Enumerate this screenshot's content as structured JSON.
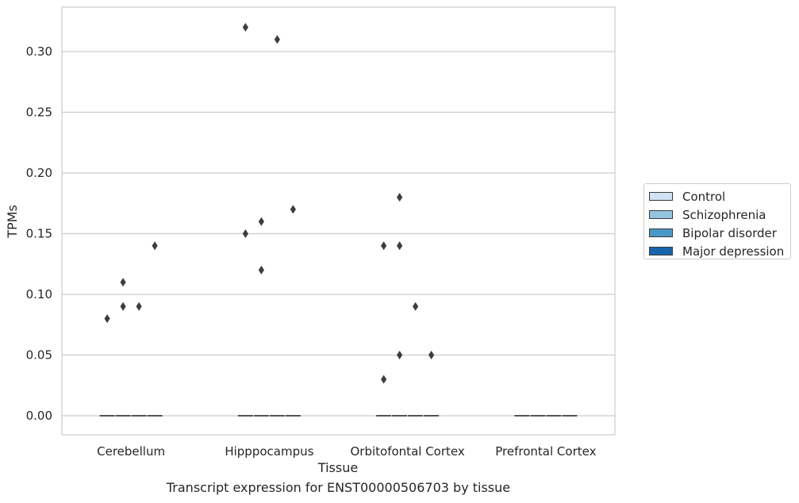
{
  "chart_data": {
    "type": "box",
    "xlabel": "Tissue",
    "ylabel": "TPMs",
    "categories": [
      "Cerebellum",
      "Hipppocampus",
      "Orbitofontal Cortex",
      "Prefrontal Cortex"
    ],
    "yticks": [
      "0.00",
      "0.05",
      "0.10",
      "0.15",
      "0.20",
      "0.25",
      "0.30"
    ],
    "ylim": [
      -0.016,
      0.337
    ],
    "grid": true,
    "legend_position": "right",
    "series": [
      {
        "name": "Control",
        "color": "#d0e1f2",
        "medians": [
          0,
          0,
          0,
          0
        ],
        "outliers": [
          [
            0.08
          ],
          [
            0.15,
            0.32
          ],
          [
            0.03,
            0.14
          ],
          []
        ]
      },
      {
        "name": "Schizophrenia",
        "color": "#94c4df",
        "medians": [
          0,
          0,
          0,
          0
        ],
        "outliers": [
          [
            0.09,
            0.11
          ],
          [
            0.12,
            0.16
          ],
          [
            0.05,
            0.14,
            0.18
          ],
          []
        ]
      },
      {
        "name": "Bipolar disorder",
        "color": "#4a98c9",
        "medians": [
          0,
          0,
          0,
          0
        ],
        "outliers": [
          [
            0.09
          ],
          [
            0.31
          ],
          [
            0.09
          ],
          []
        ]
      },
      {
        "name": "Major depression",
        "color": "#1764ab",
        "medians": [
          0,
          0,
          0,
          0
        ],
        "outliers": [
          [
            0.14
          ],
          [
            0.17
          ],
          [
            0.05
          ],
          []
        ]
      }
    ]
  },
  "caption": "Transcript expression for ENST00000506703 by tissue"
}
